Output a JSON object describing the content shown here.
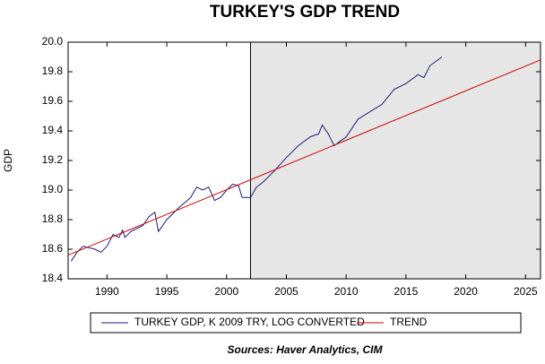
{
  "chart_data": {
    "type": "line",
    "title": "TURKEY'S GDP TREND",
    "ylabel": "GDP",
    "source": "Sources:  Haver Analytics, CIM",
    "xlim": [
      1986.75,
      2026.25
    ],
    "xticks": [
      1990,
      1995,
      2000,
      2005,
      2010,
      2015,
      2020,
      2025
    ],
    "ylim": [
      18.4,
      20.0
    ],
    "yticks": [
      18.4,
      18.6,
      18.8,
      {
        "value": 19.0,
        "label": "19.0"
      },
      19.2,
      19.4,
      19.6,
      19.8,
      {
        "value": 20.0,
        "label": "20.0"
      }
    ],
    "shaded_region": [
      2002,
      2026.25
    ],
    "series": [
      {
        "name": "TURKEY GDP, K 2009 TRY, LOG CONVERTED",
        "color": "#1c1c78",
        "x": [
          1987,
          1987.5,
          1988,
          1989,
          1989.5,
          1990,
          1990.5,
          1991,
          1991.3,
          1991.5,
          1992,
          1993,
          1993.5,
          1994,
          1994.3,
          1995,
          1996,
          1997,
          1997.5,
          1998,
          1998.5,
          1999,
          1999.5,
          2000,
          2000.5,
          2001,
          2001.3,
          2002,
          2002.5,
          2003,
          2004,
          2005,
          2006,
          2007,
          2007.7,
          2008,
          2008.5,
          2009,
          2009.5,
          2010,
          2011,
          2012,
          2013,
          2014,
          2015,
          2016,
          2016.5,
          2017,
          2018
        ],
        "values": [
          18.52,
          18.58,
          18.62,
          18.6,
          18.58,
          18.62,
          18.7,
          18.68,
          18.73,
          18.68,
          18.72,
          18.76,
          18.82,
          18.85,
          18.72,
          18.8,
          18.88,
          18.95,
          19.02,
          19.0,
          19.02,
          18.93,
          18.95,
          19.0,
          19.04,
          19.03,
          18.95,
          18.95,
          19.02,
          19.05,
          19.13,
          19.22,
          19.3,
          19.36,
          19.38,
          19.44,
          19.38,
          19.3,
          19.33,
          19.36,
          19.48,
          19.53,
          19.58,
          19.68,
          19.72,
          19.78,
          19.76,
          19.84,
          19.9
        ]
      },
      {
        "name": "TREND",
        "color": "#cc0000",
        "x": [
          1986.75,
          2026.25
        ],
        "values": [
          18.56,
          19.88
        ]
      }
    ]
  }
}
